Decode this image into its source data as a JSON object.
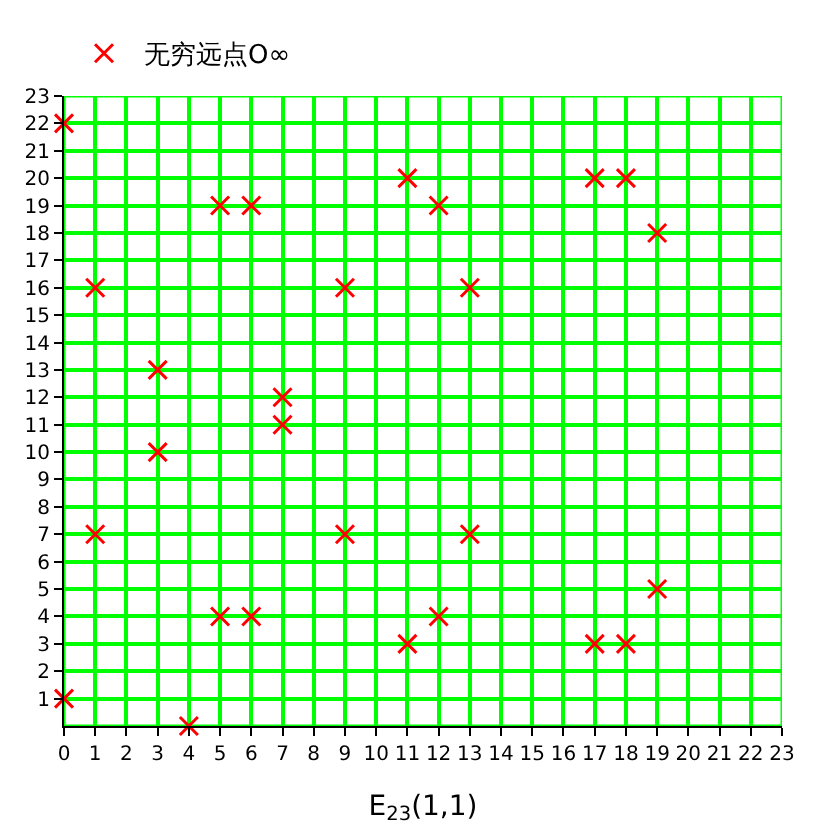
{
  "chart_data": {
    "type": "scatter",
    "xlabel": "E$_{23}$(1,1)",
    "x": [
      0,
      0,
      1,
      1,
      3,
      3,
      4,
      5,
      5,
      6,
      6,
      7,
      7,
      9,
      9,
      11,
      11,
      12,
      12,
      13,
      13,
      17,
      17,
      18,
      18,
      19,
      19
    ],
    "series": [
      {
        "name": "无穷远点O∞",
        "color": "#ff0000",
        "values": [
          1,
          22,
          7,
          16,
          10,
          13,
          0,
          4,
          19,
          4,
          19,
          11,
          12,
          7,
          16,
          3,
          20,
          4,
          19,
          7,
          16,
          3,
          20,
          3,
          20,
          5,
          18
        ]
      }
    ],
    "xlim": [
      0,
      23
    ],
    "ylim": [
      0,
      23
    ],
    "xticks": [
      0,
      1,
      2,
      3,
      4,
      5,
      6,
      7,
      8,
      9,
      10,
      11,
      12,
      13,
      14,
      15,
      16,
      17,
      18,
      19,
      20,
      21,
      22,
      23
    ],
    "yticks": [
      1,
      2,
      3,
      4,
      5,
      6,
      7,
      8,
      9,
      10,
      11,
      12,
      13,
      14,
      15,
      16,
      17,
      18,
      19,
      20,
      21,
      22,
      23
    ],
    "grid": true,
    "legend": "top left",
    "marker": "cross"
  }
}
